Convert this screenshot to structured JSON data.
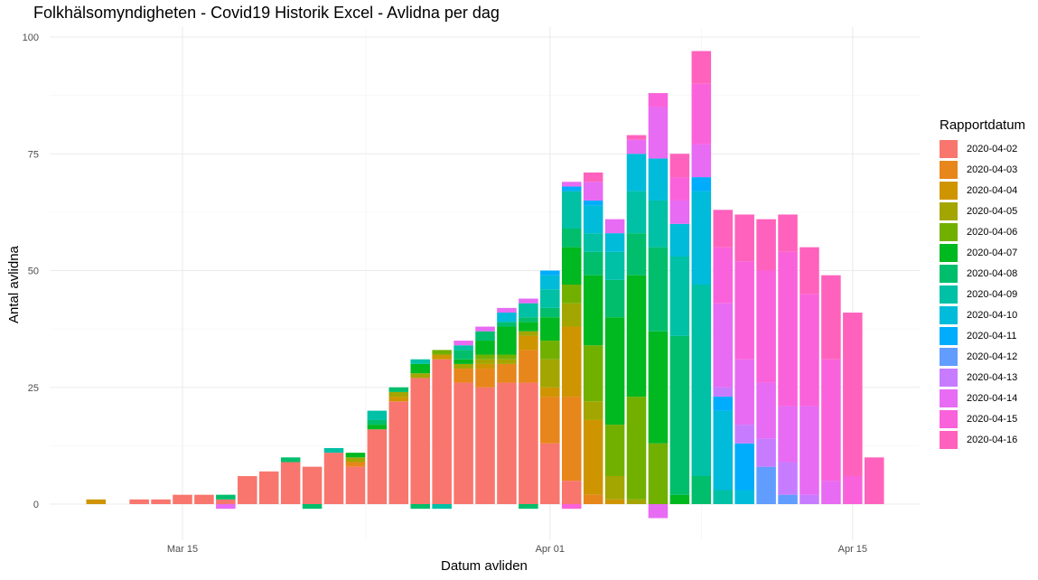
{
  "chart_data": {
    "type": "bar",
    "title": "Folkhälsomyndigheten - Covid19 Historik Excel - Avlidna per dag",
    "xlabel": "Datum avliden",
    "ylabel": "Antal avlidna",
    "ylim": [
      -5,
      100
    ],
    "yticks": [
      0,
      25,
      50,
      75,
      100
    ],
    "xticks": [
      {
        "label": "Mar 15",
        "date": "2020-03-15"
      },
      {
        "label": "Apr 01",
        "date": "2020-04-01"
      },
      {
        "label": "Apr 15",
        "date": "2020-04-15"
      }
    ],
    "stacked": true,
    "grid": true,
    "legend_title": "Rapportdatum",
    "legend_position": "right",
    "series": [
      {
        "name": "2020-04-02",
        "color": "#F8766D"
      },
      {
        "name": "2020-04-03",
        "color": "#E7861B"
      },
      {
        "name": "2020-04-04",
        "color": "#CF9500"
      },
      {
        "name": "2020-04-05",
        "color": "#A3A500"
      },
      {
        "name": "2020-04-06",
        "color": "#72B000"
      },
      {
        "name": "2020-04-07",
        "color": "#00B81F"
      },
      {
        "name": "2020-04-08",
        "color": "#00BE6C"
      },
      {
        "name": "2020-04-09",
        "color": "#00C0A5"
      },
      {
        "name": "2020-04-10",
        "color": "#00BBDA"
      },
      {
        "name": "2020-04-11",
        "color": "#00ACFC"
      },
      {
        "name": "2020-04-12",
        "color": "#619CFF"
      },
      {
        "name": "2020-04-13",
        "color": "#C77CFF"
      },
      {
        "name": "2020-04-14",
        "color": "#E76BF3"
      },
      {
        "name": "2020-04-15",
        "color": "#FA62DB"
      },
      {
        "name": "2020-04-16",
        "color": "#FF62BC"
      }
    ],
    "bars": [
      {
        "date": "2020-03-11",
        "pos": [
          0,
          0,
          1,
          0,
          0,
          0,
          0,
          0,
          0,
          0,
          0,
          0,
          0,
          0,
          0
        ],
        "neg": []
      },
      {
        "date": "2020-03-13",
        "pos": [
          1,
          0,
          0,
          0,
          0,
          0,
          0,
          0,
          0,
          0,
          0,
          0,
          0,
          0,
          0
        ],
        "neg": []
      },
      {
        "date": "2020-03-14",
        "pos": [
          1,
          0,
          0,
          0,
          0,
          0,
          0,
          0,
          0,
          0,
          0,
          0,
          0,
          0,
          0
        ],
        "neg": []
      },
      {
        "date": "2020-03-15",
        "pos": [
          2,
          0,
          0,
          0,
          0,
          0,
          0,
          0,
          0,
          0,
          0,
          0,
          0,
          0,
          0
        ],
        "neg": []
      },
      {
        "date": "2020-03-16",
        "pos": [
          2,
          0,
          0,
          0,
          0,
          0,
          0,
          0,
          0,
          0,
          0,
          0,
          0,
          0,
          0
        ],
        "neg": []
      },
      {
        "date": "2020-03-17",
        "pos": [
          1,
          0,
          0,
          0,
          0,
          0,
          1,
          0,
          0,
          0,
          0,
          0,
          0,
          0,
          0
        ],
        "neg": [
          {
            "s": 12,
            "v": 1
          }
        ]
      },
      {
        "date": "2020-03-18",
        "pos": [
          6,
          0,
          0,
          0,
          0,
          0,
          0,
          0,
          0,
          0,
          0,
          0,
          0,
          0,
          0
        ],
        "neg": []
      },
      {
        "date": "2020-03-19",
        "pos": [
          7,
          0,
          0,
          0,
          0,
          0,
          0,
          0,
          0,
          0,
          0,
          0,
          0,
          0,
          0
        ],
        "neg": []
      },
      {
        "date": "2020-03-20",
        "pos": [
          9,
          0,
          0,
          0,
          0,
          0,
          1,
          0,
          0,
          0,
          0,
          0,
          0,
          0,
          0
        ],
        "neg": []
      },
      {
        "date": "2020-03-21",
        "pos": [
          8,
          0,
          0,
          0,
          0,
          0,
          0,
          0,
          0,
          0,
          0,
          0,
          0,
          0,
          0
        ],
        "neg": [
          {
            "s": 6,
            "v": 1
          }
        ]
      },
      {
        "date": "2020-03-22",
        "pos": [
          11,
          0,
          0,
          0,
          0,
          0,
          0,
          1,
          0,
          0,
          0,
          0,
          0,
          0,
          0
        ],
        "neg": []
      },
      {
        "date": "2020-03-23",
        "pos": [
          8,
          1,
          0,
          1,
          0,
          1,
          0,
          0,
          0,
          0,
          0,
          0,
          0,
          0,
          0
        ],
        "neg": []
      },
      {
        "date": "2020-03-24",
        "pos": [
          16,
          0,
          0,
          0,
          0,
          1,
          1,
          2,
          0,
          0,
          0,
          0,
          0,
          0,
          0
        ],
        "neg": []
      },
      {
        "date": "2020-03-25",
        "pos": [
          22,
          0,
          1,
          1,
          0,
          0,
          1,
          0,
          0,
          0,
          0,
          0,
          0,
          0,
          0
        ],
        "neg": []
      },
      {
        "date": "2020-03-26",
        "pos": [
          27,
          0,
          0,
          1,
          0,
          2,
          0,
          1,
          0,
          0,
          0,
          0,
          0,
          0,
          0
        ],
        "neg": [
          {
            "s": 6,
            "v": 1
          }
        ]
      },
      {
        "date": "2020-03-27",
        "pos": [
          31,
          0,
          1,
          0,
          1,
          0,
          0,
          0,
          0,
          0,
          0,
          0,
          0,
          0,
          0
        ],
        "neg": [
          {
            "s": 7,
            "v": 1
          }
        ]
      },
      {
        "date": "2020-03-28",
        "pos": [
          26,
          3,
          0,
          1,
          0,
          1,
          2,
          1,
          0,
          0,
          0,
          0,
          1,
          0,
          0
        ],
        "neg": []
      },
      {
        "date": "2020-03-29",
        "pos": [
          25,
          4,
          1,
          1,
          1,
          3,
          2,
          0,
          0,
          0,
          0,
          0,
          1,
          0,
          0
        ],
        "neg": []
      },
      {
        "date": "2020-03-30",
        "pos": [
          26,
          4,
          0,
          1,
          1,
          6,
          1,
          0,
          2,
          0,
          0,
          0,
          1,
          0,
          0
        ],
        "neg": []
      },
      {
        "date": "2020-03-31",
        "pos": [
          26,
          7,
          3,
          1,
          0,
          2,
          1,
          3,
          0,
          0,
          0,
          0,
          1,
          0,
          0
        ],
        "neg": [
          {
            "s": 6,
            "v": 1
          }
        ]
      },
      {
        "date": "2020-04-01",
        "pos": [
          13,
          10,
          2,
          6,
          4,
          5,
          2,
          4,
          3,
          1,
          0,
          0,
          0,
          0,
          0
        ],
        "neg": []
      },
      {
        "date": "2020-04-02",
        "pos": [
          5,
          18,
          15,
          5,
          4,
          8,
          4,
          8,
          0,
          1,
          0,
          0,
          1,
          0,
          0
        ],
        "neg": [
          {
            "s": 13,
            "v": 1
          }
        ]
      },
      {
        "date": "2020-04-03",
        "pos": [
          0,
          2,
          16,
          4,
          12,
          15,
          5,
          4,
          6,
          1,
          0,
          0,
          4,
          0,
          2
        ],
        "neg": []
      },
      {
        "date": "2020-04-04",
        "pos": [
          0,
          0,
          1,
          5,
          11,
          23,
          8,
          6,
          4,
          0,
          0,
          0,
          3,
          0,
          0
        ],
        "neg": []
      },
      {
        "date": "2020-04-05",
        "pos": [
          0,
          0,
          0,
          1,
          22,
          26,
          9,
          9,
          8,
          0,
          0,
          0,
          3,
          0,
          1
        ],
        "neg": []
      },
      {
        "date": "2020-04-06",
        "pos": [
          0,
          0,
          0,
          0,
          13,
          24,
          18,
          10,
          9,
          0,
          0,
          0,
          11,
          3,
          0
        ],
        "neg": [
          {
            "s": 12,
            "v": 3
          }
        ]
      },
      {
        "date": "2020-04-07",
        "pos": [
          0,
          0,
          0,
          0,
          0,
          2,
          34,
          17,
          7,
          0,
          0,
          0,
          5,
          5,
          5
        ],
        "neg": []
      },
      {
        "date": "2020-04-08",
        "pos": [
          0,
          0,
          0,
          0,
          0,
          0,
          6,
          41,
          20,
          3,
          0,
          0,
          7,
          13,
          7
        ],
        "neg": []
      },
      {
        "date": "2020-04-09",
        "pos": [
          0,
          0,
          0,
          0,
          0,
          0,
          0,
          3,
          17,
          3,
          0,
          2,
          18,
          12,
          8
        ],
        "neg": []
      },
      {
        "date": "2020-04-10",
        "pos": [
          0,
          0,
          0,
          0,
          0,
          0,
          0,
          0,
          3,
          10,
          0,
          4,
          14,
          21,
          10
        ],
        "neg": []
      },
      {
        "date": "2020-04-11",
        "pos": [
          0,
          0,
          0,
          0,
          0,
          0,
          0,
          0,
          0,
          0,
          8,
          6,
          12,
          24,
          11
        ],
        "neg": []
      },
      {
        "date": "2020-04-12",
        "pos": [
          0,
          0,
          0,
          0,
          0,
          0,
          0,
          0,
          0,
          0,
          2,
          7,
          12,
          33,
          8
        ],
        "neg": []
      },
      {
        "date": "2020-04-13",
        "pos": [
          0,
          0,
          0,
          0,
          0,
          0,
          0,
          0,
          0,
          0,
          0,
          2,
          19,
          24,
          10
        ],
        "neg": []
      },
      {
        "date": "2020-04-14",
        "pos": [
          0,
          0,
          0,
          0,
          0,
          0,
          0,
          0,
          0,
          0,
          0,
          0,
          5,
          26,
          18
        ],
        "neg": []
      },
      {
        "date": "2020-04-15",
        "pos": [
          0,
          0,
          0,
          0,
          0,
          0,
          0,
          0,
          0,
          0,
          0,
          0,
          0,
          6,
          35
        ],
        "neg": []
      },
      {
        "date": "2020-04-16",
        "pos": [
          0,
          0,
          0,
          0,
          0,
          0,
          0,
          0,
          0,
          0,
          0,
          0,
          0,
          0,
          10
        ],
        "neg": []
      }
    ]
  }
}
